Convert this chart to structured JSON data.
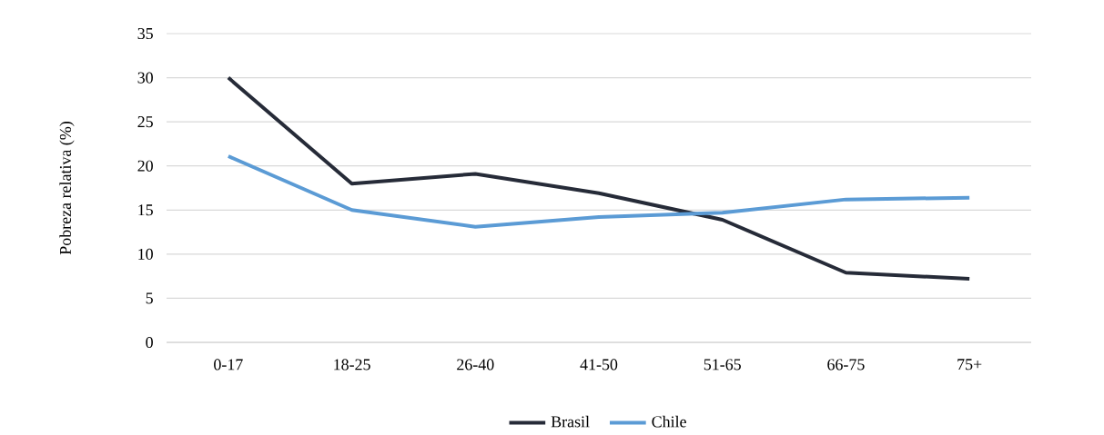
{
  "chart_data": {
    "type": "line",
    "ylabel": "Pobreza relativa (%)",
    "categories": [
      "0-17",
      "18-25",
      "26-40",
      "41-50",
      "51-65",
      "66-75",
      "75+"
    ],
    "series": [
      {
        "name": "Brasil",
        "color": "#262b38",
        "values": [
          30.0,
          18.0,
          19.1,
          16.9,
          13.9,
          7.9,
          7.2
        ]
      },
      {
        "name": "Chile",
        "color": "#5b9bd5",
        "values": [
          21.1,
          15.0,
          13.1,
          14.2,
          14.7,
          16.2,
          16.4
        ]
      }
    ],
    "ylim": [
      0,
      35
    ],
    "yticks": [
      0,
      5,
      10,
      15,
      20,
      25,
      30,
      35
    ],
    "grid": "y",
    "legend": "bottom",
    "marker": "none",
    "line_style": "solid"
  }
}
